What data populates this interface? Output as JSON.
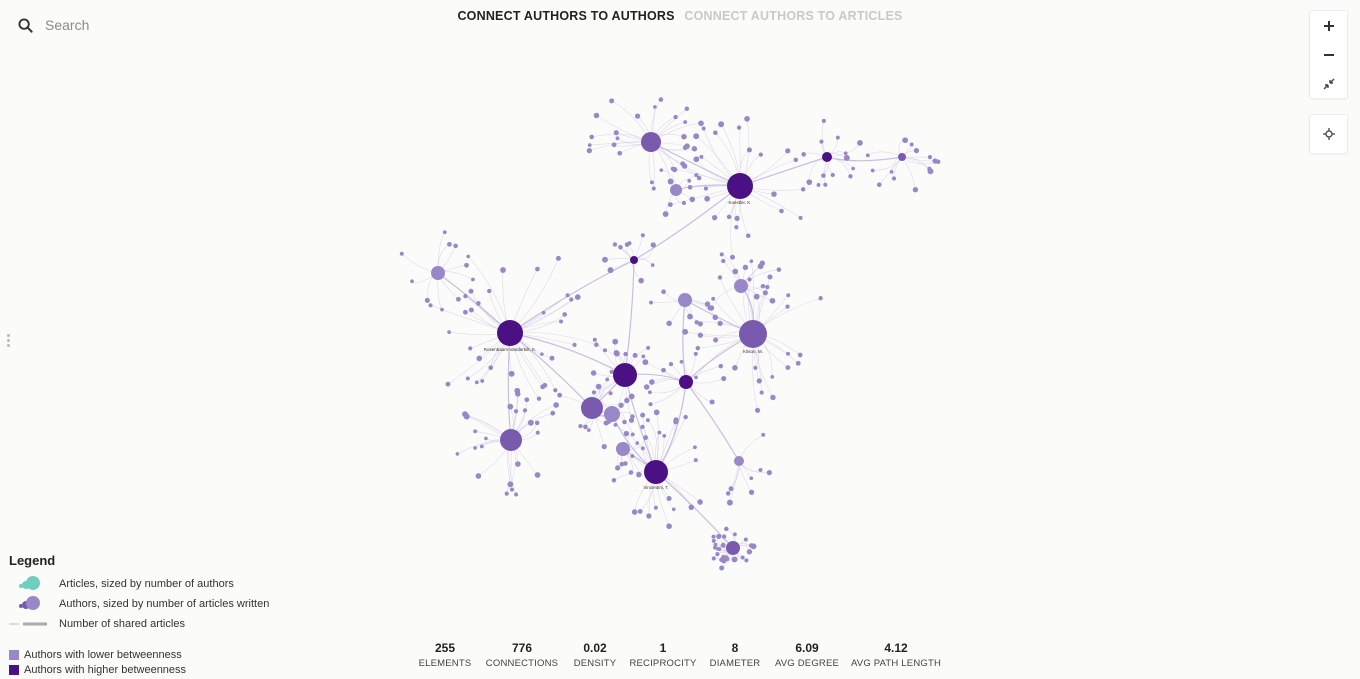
{
  "search": {
    "placeholder": "Search"
  },
  "tabs": [
    {
      "label": "CONNECT AUTHORS TO AUTHORS",
      "active": true
    },
    {
      "label": "CONNECT AUTHORS TO ARTICLES",
      "active": false
    }
  ],
  "zoom": {
    "zoom_in": "+",
    "zoom_out": "−",
    "icons": [
      "plus-icon",
      "minus-icon",
      "collapse-icon",
      "recenter-icon"
    ]
  },
  "graph": {
    "labels": [
      "Koestler, K.",
      "Rosenbaum-Vanderbilt, K.",
      "Kitson, M.",
      "Vincentini, T."
    ],
    "colors": {
      "high": "#4b1184",
      "mid": "#7a5aae",
      "low": "#9987c8",
      "edge": "#c8bfe0",
      "teal": "#6fcfbe"
    }
  },
  "legend": {
    "title": "Legend",
    "items": [
      "Articles, sized by number of authors",
      "Authors, sized by number of articles written",
      "Number of shared articles"
    ],
    "betweenness": [
      {
        "label": "Authors with lower betweenness",
        "color": "#9987c8"
      },
      {
        "label": "Authors with higher betweenness",
        "color": "#4b1184"
      }
    ]
  },
  "stats": [
    {
      "value": "255",
      "label": "ELEMENTS"
    },
    {
      "value": "776",
      "label": "CONNECTIONS"
    },
    {
      "value": "0.02",
      "label": "DENSITY"
    },
    {
      "value": "1",
      "label": "RECIPROCITY"
    },
    {
      "value": "8",
      "label": "DIAMETER"
    },
    {
      "value": "6.09",
      "label": "AVG DEGREE"
    },
    {
      "value": "4.12",
      "label": "AVG PATH LENGTH"
    }
  ]
}
